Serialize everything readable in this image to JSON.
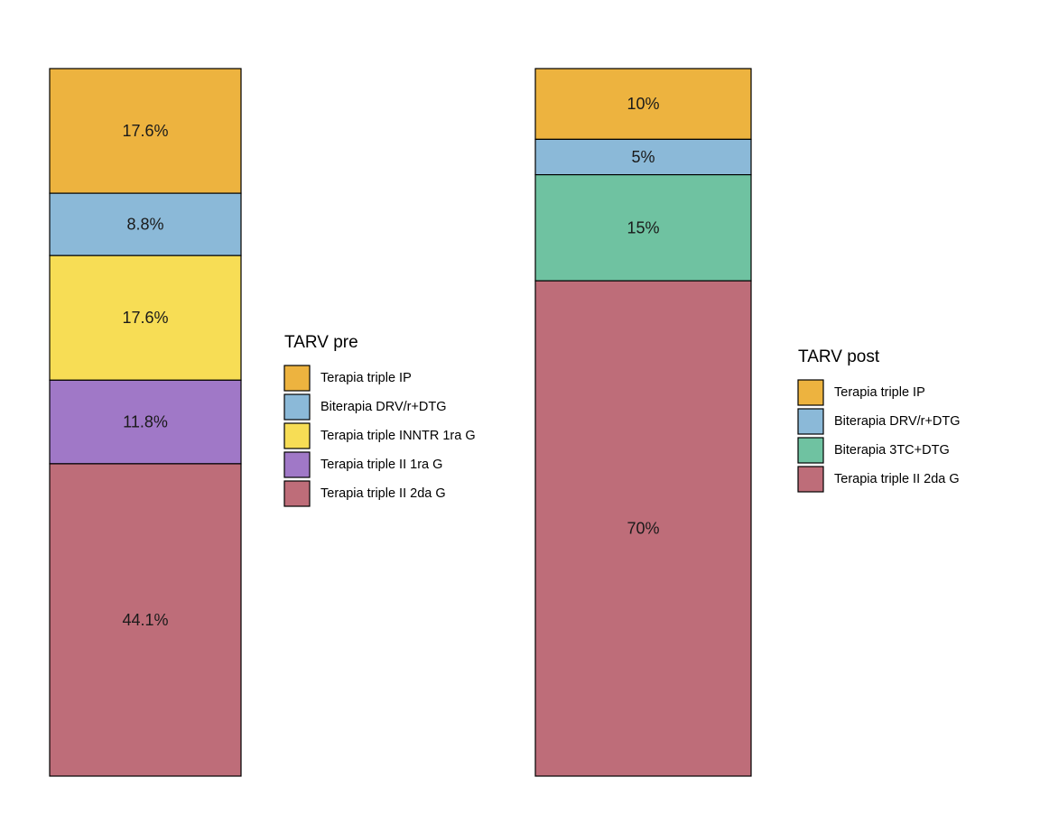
{
  "chart_data": [
    {
      "type": "bar",
      "stacked": true,
      "ylim": [
        0,
        100
      ],
      "legend": {
        "title": "TARV pre",
        "placement": "right",
        "entries": [
          "Terapia triple IP",
          "Biterapia DRV/r+DTG",
          "Terapia triple INNTR 1ra G",
          "Terapia triple II 1ra G",
          "Terapia triple II 2da G"
        ]
      },
      "series": [
        {
          "name": "Terapia triple IP",
          "values": [
            17.6
          ],
          "label": "17.6%",
          "color": "#EDB33F"
        },
        {
          "name": "Biterapia DRV/r+DTG",
          "values": [
            8.8
          ],
          "label": "8.8%",
          "color": "#8BB9D8"
        },
        {
          "name": "Terapia triple INNTR 1ra G",
          "values": [
            17.6
          ],
          "label": "17.6%",
          "color": "#F7DD55"
        },
        {
          "name": "Terapia triple II 1ra G",
          "values": [
            11.8
          ],
          "label": "11.8%",
          "color": "#A078C7"
        },
        {
          "name": "Terapia triple II 2da G",
          "values": [
            44.1
          ],
          "label": "44.1%",
          "color": "#BE6D79"
        }
      ]
    },
    {
      "type": "bar",
      "stacked": true,
      "ylim": [
        0,
        100
      ],
      "legend": {
        "title": "TARV post",
        "placement": "right",
        "entries": [
          "Terapia triple IP",
          "Biterapia DRV/r+DTG",
          "Biterapia 3TC+DTG",
          "Terapia triple II 2da G"
        ]
      },
      "series": [
        {
          "name": "Terapia triple IP",
          "values": [
            10
          ],
          "label": "10%",
          "color": "#EDB33F"
        },
        {
          "name": "Biterapia DRV/r+DTG",
          "values": [
            5
          ],
          "label": "5%",
          "color": "#8BB9D8"
        },
        {
          "name": "Biterapia 3TC+DTG",
          "values": [
            15
          ],
          "label": "15%",
          "color": "#6FC2A1"
        },
        {
          "name": "Terapia triple II 2da G",
          "values": [
            70
          ],
          "label": "70%",
          "color": "#BE6D79"
        }
      ]
    }
  ]
}
